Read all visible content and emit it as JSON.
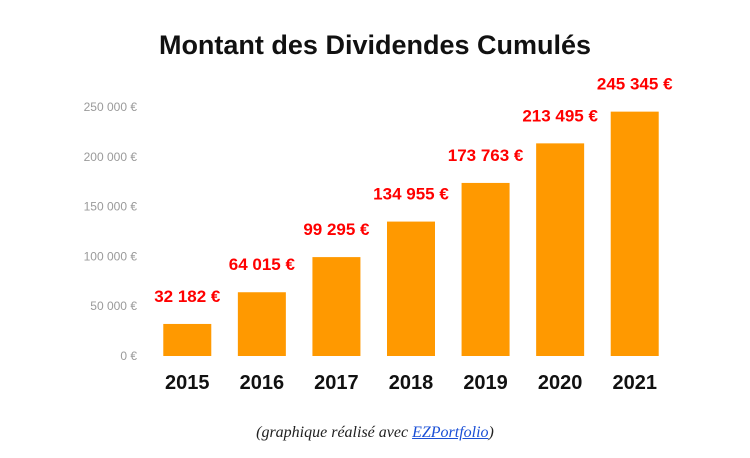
{
  "chart_data": {
    "type": "bar",
    "title": "Montant des Dividendes Cumulés",
    "categories": [
      "2015",
      "2016",
      "2017",
      "2018",
      "2019",
      "2020",
      "2021"
    ],
    "values": [
      32182,
      64015,
      99295,
      134955,
      173763,
      213495,
      245345
    ],
    "data_labels": [
      "32 182 €",
      "64 015 €",
      "99 295 €",
      "134 955 €",
      "173 763 €",
      "213 495 €",
      "245 345 €"
    ],
    "ylim": [
      0,
      250000
    ],
    "y_ticks": [
      0,
      50000,
      100000,
      150000,
      200000,
      250000
    ],
    "y_tick_labels": [
      "0 €",
      "50 000 €",
      "100 000 €",
      "150 000 €",
      "200 000 €",
      "250 000 €"
    ],
    "xlabel": "",
    "ylabel": "",
    "grid": false,
    "legend": "none",
    "bar_color": "#ff9900",
    "label_color": "#ff0000"
  },
  "caption": {
    "prefix": "(graphique réalisé avec ",
    "link_text": "EZPortfolio",
    "suffix": ")"
  }
}
